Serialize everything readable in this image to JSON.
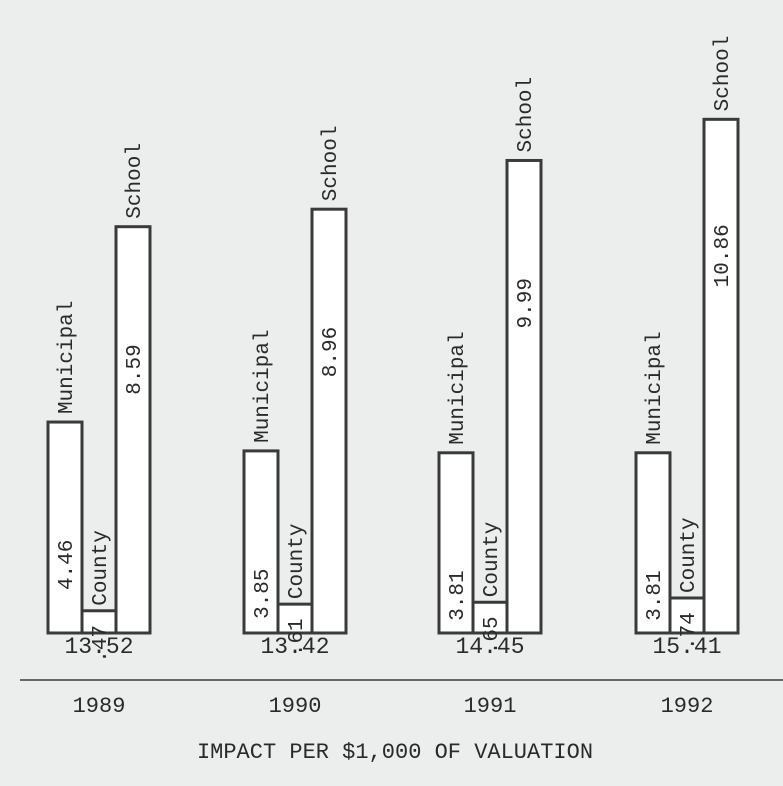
{
  "chart_data": {
    "type": "bar",
    "title": "",
    "xlabel": "IMPACT PER $1,000 OF VALUATION",
    "ylabel": "",
    "categories": [
      "1989",
      "1990",
      "1991",
      "1992"
    ],
    "series": [
      {
        "name": "Municipal",
        "values": [
          4.46,
          3.85,
          3.81,
          3.81
        ],
        "labels": [
          "4.46",
          "3.85",
          "3.81",
          "3.81"
        ]
      },
      {
        "name": "County",
        "values": [
          0.47,
          0.61,
          0.65,
          0.74
        ],
        "labels": [
          ".47",
          ".61",
          ".65",
          ".74"
        ]
      },
      {
        "name": "School",
        "values": [
          8.59,
          8.96,
          9.99,
          10.86
        ],
        "labels": [
          "8.59",
          "8.96",
          "9.99",
          "10.86"
        ]
      }
    ],
    "totals": [
      "13.52",
      "13.42",
      "14.45",
      "15.41"
    ],
    "grid": false,
    "legend": "none",
    "colors": {
      "bar_fill": "#ffffff",
      "bar_stroke": "#3a3a3a",
      "background": "#eceeed",
      "text": "#2a2a2a"
    }
  }
}
